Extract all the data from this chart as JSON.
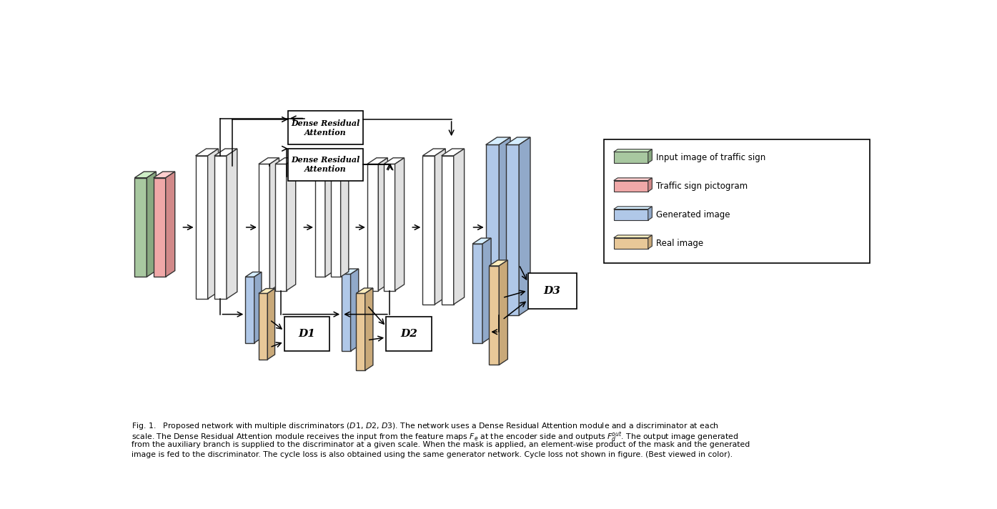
{
  "bg_color": "#ffffff",
  "fig_width": 13.95,
  "fig_height": 7.12,
  "colors": {
    "green": "#a8c8a0",
    "pink": "#f0a8a8",
    "blue": "#b0c8e8",
    "tan": "#e8c898",
    "white": "#ffffff",
    "light_gray": "#f0f0f0"
  },
  "legend_labels": [
    "Input image of traffic sign",
    "Traffic sign pictogram",
    "Generated image",
    "Real image"
  ],
  "legend_colors": [
    "#a8c8a0",
    "#f0a8a8",
    "#b0c8e8",
    "#e8c898"
  ],
  "caption_line1": "Fig. 1.   Proposed network with multiple discriminators (",
  "caption_line1b": "D1",
  "caption_line1c": ", ",
  "caption_line1d": "D2",
  "caption_line1e": ", ",
  "caption_line1f": "D3",
  "caption_line1g": "). The network uses a Dense Residual Attention module and a discriminator at each",
  "caption_line2": "scale. The Dense Residual Attention module receives the input from the feature maps ",
  "caption_line3": "from the auxiliary branch is supplied to the discriminator at a given scale. When the mask is applied, an element-wise product of the mask and the generated",
  "caption_line4": "image is fed to the discriminator. The cycle loss is also obtained using the same generator network. Cycle loss not shown in figure. (Best viewed in color)."
}
